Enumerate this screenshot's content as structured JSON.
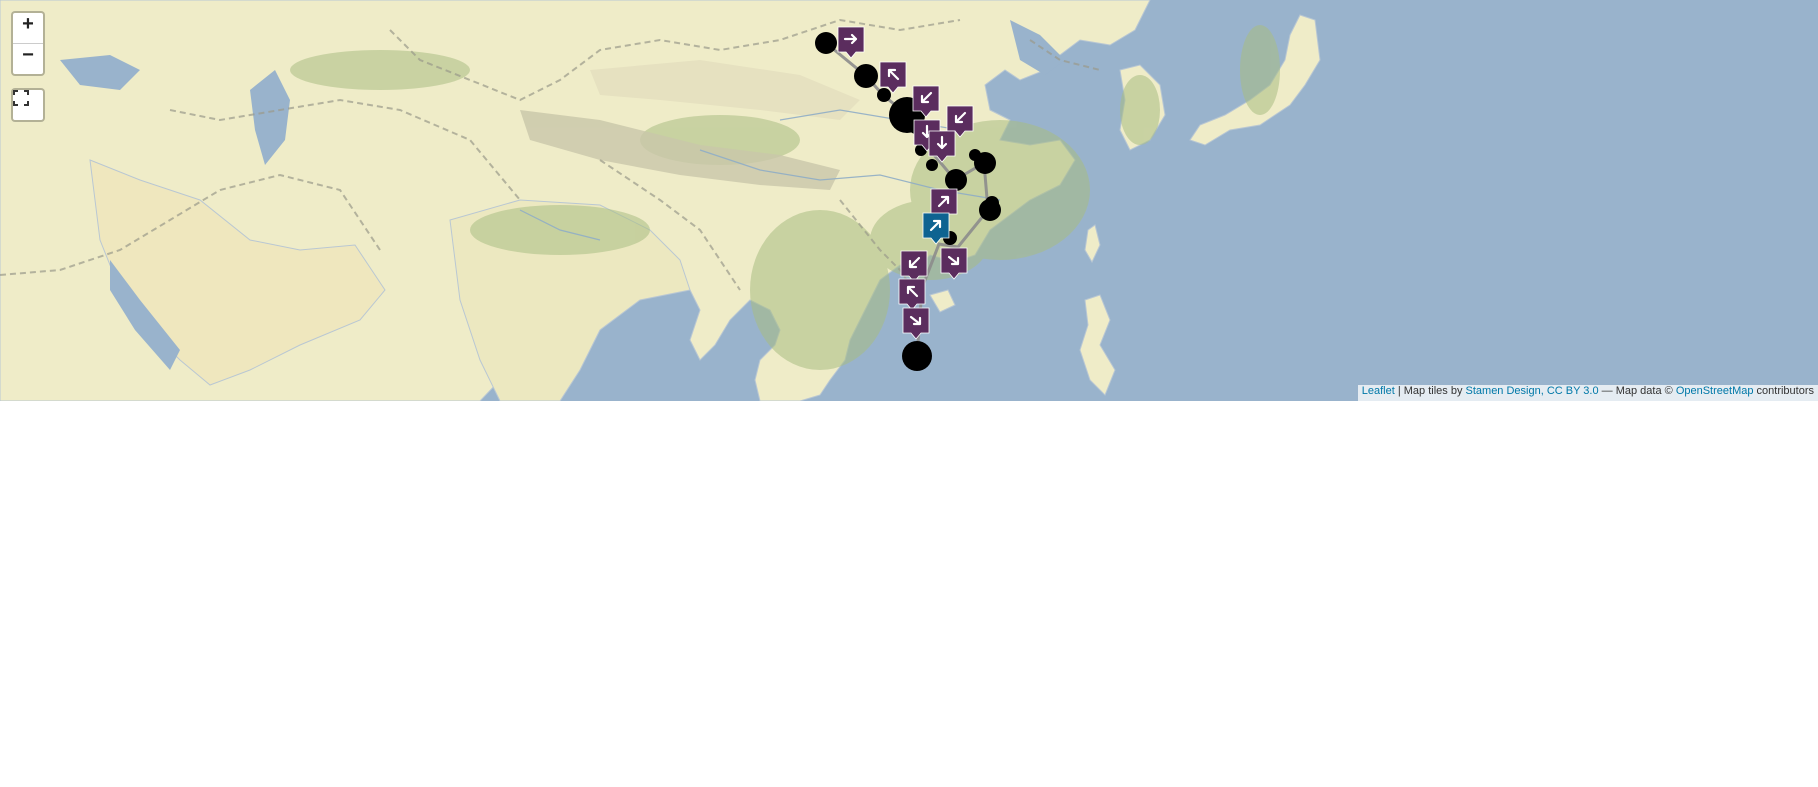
{
  "map": {
    "zoom_in_label": "+",
    "zoom_out_label": "−",
    "fullscreen_icon": "fullscreen-icon",
    "colors": {
      "water": "#99b3cc",
      "land": "#efecc8",
      "vegetation": "#a9bd83",
      "route_line": "#8c8c8c",
      "circle": "#000000",
      "marker_default": "#5b2d5e",
      "marker_active": "#0e6391",
      "marker_glyph": "#ffffff"
    },
    "markers": [
      {
        "icon": "arrow-right-icon",
        "state": "default"
      },
      {
        "icon": "arrow-up-left-icon",
        "state": "default"
      },
      {
        "icon": "arrow-down-left-icon",
        "state": "default"
      },
      {
        "icon": "arrow-down-left-icon",
        "state": "default"
      },
      {
        "icon": "arrow-down-icon",
        "state": "default"
      },
      {
        "icon": "arrow-down-icon",
        "state": "default"
      },
      {
        "icon": "arrow-up-right-icon",
        "state": "default"
      },
      {
        "icon": "arrow-up-right-icon",
        "state": "active"
      },
      {
        "icon": "arrow-right-down-icon",
        "state": "default"
      },
      {
        "icon": "arrow-down-left-icon",
        "state": "default"
      },
      {
        "icon": "arrow-up-left-icon",
        "state": "default"
      },
      {
        "icon": "arrow-right-down-icon",
        "state": "default"
      }
    ],
    "attribution": {
      "leaflet": "Leaflet",
      "sep1": " | Map tiles by ",
      "stamen": "Stamen Design, CC BY 3.0",
      "sep2": " — Map data © ",
      "osm": "OpenStreetMap",
      "tail": " contributors"
    }
  }
}
